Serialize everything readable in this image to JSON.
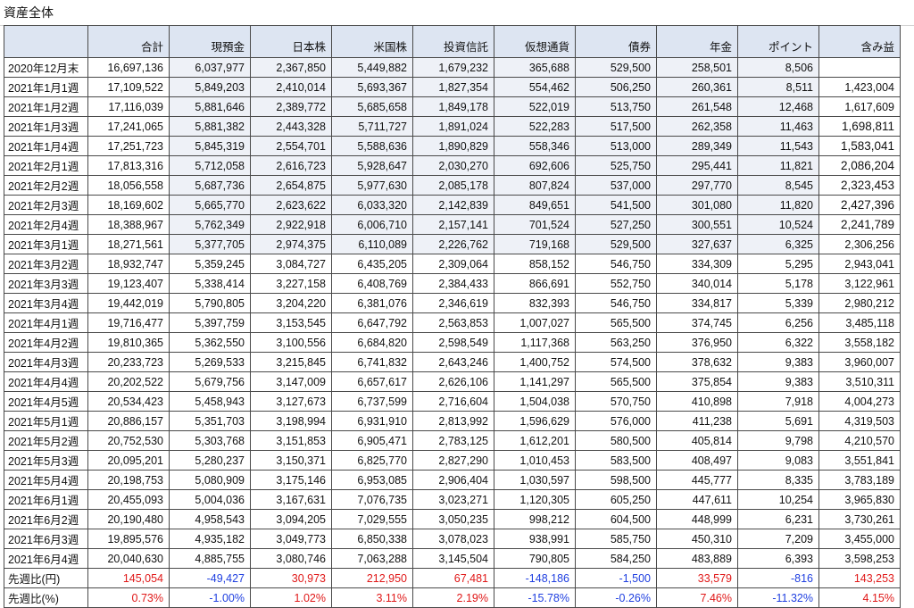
{
  "title": "資産全体",
  "headers": [
    "合計",
    "現預金",
    "日本株",
    "米国株",
    "投資信託",
    "仮想通貨",
    "債券",
    "年金",
    "ポイント",
    "含み益"
  ],
  "rows": [
    [
      "2020年12月末",
      "16,697,136",
      "6,037,977",
      "2,367,850",
      "5,449,882",
      "1,679,232",
      "365,688",
      "529,500",
      "258,501",
      "8,506",
      ""
    ],
    [
      "2021年1月1週",
      "17,109,522",
      "5,849,203",
      "2,410,014",
      "5,693,367",
      "1,827,354",
      "554,462",
      "506,250",
      "260,361",
      "8,511",
      "1,423,004"
    ],
    [
      "2021年1月2週",
      "17,116,039",
      "5,881,646",
      "2,389,772",
      "5,685,658",
      "1,849,178",
      "522,019",
      "513,750",
      "261,548",
      "12,468",
      "1,617,609"
    ],
    [
      "2021年1月3週",
      "17,241,065",
      "5,881,382",
      "2,443,328",
      "5,711,727",
      "1,891,024",
      "522,283",
      "517,500",
      "262,358",
      "11,463",
      "1,698,811"
    ],
    [
      "2021年1月4週",
      "17,251,723",
      "5,845,319",
      "2,554,701",
      "5,588,636",
      "1,890,829",
      "558,346",
      "513,000",
      "289,349",
      "11,543",
      "1,583,041"
    ],
    [
      "2021年2月1週",
      "17,813,316",
      "5,712,058",
      "2,616,723",
      "5,928,647",
      "2,030,270",
      "692,606",
      "525,750",
      "295,441",
      "11,821",
      "2,086,204"
    ],
    [
      "2021年2月2週",
      "18,056,558",
      "5,687,736",
      "2,654,875",
      "5,977,630",
      "2,085,178",
      "807,824",
      "537,000",
      "297,770",
      "8,545",
      "2,323,453"
    ],
    [
      "2021年2月3週",
      "18,169,602",
      "5,665,770",
      "2,623,622",
      "6,033,320",
      "2,142,839",
      "849,651",
      "541,500",
      "301,080",
      "11,820",
      "2,427,396"
    ],
    [
      "2021年2月4週",
      "18,388,967",
      "5,762,349",
      "2,922,918",
      "6,006,710",
      "2,157,141",
      "701,524",
      "527,250",
      "300,551",
      "10,524",
      "2,241,789"
    ],
    [
      "2021年3月1週",
      "18,271,561",
      "5,377,705",
      "2,974,375",
      "6,110,089",
      "2,226,762",
      "719,168",
      "529,500",
      "327,637",
      "6,325",
      "2,306,256"
    ],
    [
      "2021年3月2週",
      "18,932,747",
      "5,359,245",
      "3,084,727",
      "6,435,205",
      "2,309,064",
      "858,152",
      "546,750",
      "334,309",
      "5,295",
      "2,943,041"
    ],
    [
      "2021年3月3週",
      "19,123,407",
      "5,338,414",
      "3,227,158",
      "6,408,769",
      "2,384,433",
      "866,691",
      "552,750",
      "340,014",
      "5,178",
      "3,122,961"
    ],
    [
      "2021年3月4週",
      "19,442,019",
      "5,790,805",
      "3,204,220",
      "6,381,076",
      "2,346,619",
      "832,393",
      "546,750",
      "334,817",
      "5,339",
      "2,980,212"
    ],
    [
      "2021年4月1週",
      "19,716,477",
      "5,397,759",
      "3,153,545",
      "6,647,792",
      "2,563,853",
      "1,007,027",
      "565,500",
      "374,745",
      "6,256",
      "3,485,118"
    ],
    [
      "2021年4月2週",
      "19,810,365",
      "5,362,550",
      "3,100,556",
      "6,684,820",
      "2,598,549",
      "1,117,368",
      "563,250",
      "376,950",
      "6,322",
      "3,558,182"
    ],
    [
      "2021年4月3週",
      "20,233,723",
      "5,269,533",
      "3,215,845",
      "6,741,832",
      "2,643,246",
      "1,400,752",
      "574,500",
      "378,632",
      "9,383",
      "3,960,007"
    ],
    [
      "2021年4月4週",
      "20,202,522",
      "5,679,756",
      "3,147,009",
      "6,657,617",
      "2,626,106",
      "1,141,297",
      "565,500",
      "375,854",
      "9,383",
      "3,510,311"
    ],
    [
      "2021年4月5週",
      "20,534,423",
      "5,458,943",
      "3,127,673",
      "6,737,599",
      "2,716,604",
      "1,504,038",
      "570,750",
      "410,898",
      "7,918",
      "4,004,273"
    ],
    [
      "2021年5月1週",
      "20,886,157",
      "5,351,703",
      "3,198,994",
      "6,931,910",
      "2,813,992",
      "1,596,629",
      "576,000",
      "411,238",
      "5,691",
      "4,319,503"
    ],
    [
      "2021年5月2週",
      "20,752,530",
      "5,303,768",
      "3,151,853",
      "6,905,471",
      "2,783,125",
      "1,612,201",
      "580,500",
      "405,814",
      "9,798",
      "4,210,570"
    ],
    [
      "2021年5月3週",
      "20,095,201",
      "5,280,237",
      "3,150,371",
      "6,825,770",
      "2,827,290",
      "1,010,453",
      "583,500",
      "408,497",
      "9,083",
      "3,551,841"
    ],
    [
      "2021年5月4週",
      "20,198,753",
      "5,080,909",
      "3,175,146",
      "6,953,085",
      "2,906,404",
      "1,030,597",
      "598,500",
      "445,777",
      "8,335",
      "3,783,189"
    ],
    [
      "2021年6月1週",
      "20,455,093",
      "5,004,036",
      "3,167,631",
      "7,076,735",
      "3,023,271",
      "1,120,305",
      "605,250",
      "447,611",
      "10,254",
      "3,965,830"
    ],
    [
      "2021年6月2週",
      "20,190,480",
      "4,958,543",
      "3,094,205",
      "7,029,555",
      "3,050,235",
      "998,212",
      "604,500",
      "448,999",
      "6,231",
      "3,730,261"
    ],
    [
      "2021年6月3週",
      "19,895,576",
      "4,935,182",
      "3,049,773",
      "6,850,338",
      "3,078,023",
      "938,991",
      "585,750",
      "450,310",
      "7,209",
      "3,455,000"
    ],
    [
      "2021年6月4週",
      "20,040,630",
      "4,885,755",
      "3,080,746",
      "7,063,288",
      "3,145,504",
      "790,805",
      "584,250",
      "483,889",
      "6,393",
      "3,598,253"
    ]
  ],
  "summary": [
    [
      "先週比(円)",
      "145,054",
      "-49,427",
      "30,973",
      "212,950",
      "67,481",
      "-148,186",
      "-1,500",
      "33,579",
      "-816",
      "143,253"
    ],
    [
      "先週比(%)",
      "0.73%",
      "-1.00%",
      "1.02%",
      "3.11%",
      "2.19%",
      "-15.78%",
      "-0.26%",
      "7.46%",
      "-11.32%",
      "4.15%"
    ]
  ],
  "colors": {
    "header_bg": "#dde5f2",
    "shade": "#eef1f7",
    "positive": "#e01818",
    "negative": "#1f3fe0"
  }
}
